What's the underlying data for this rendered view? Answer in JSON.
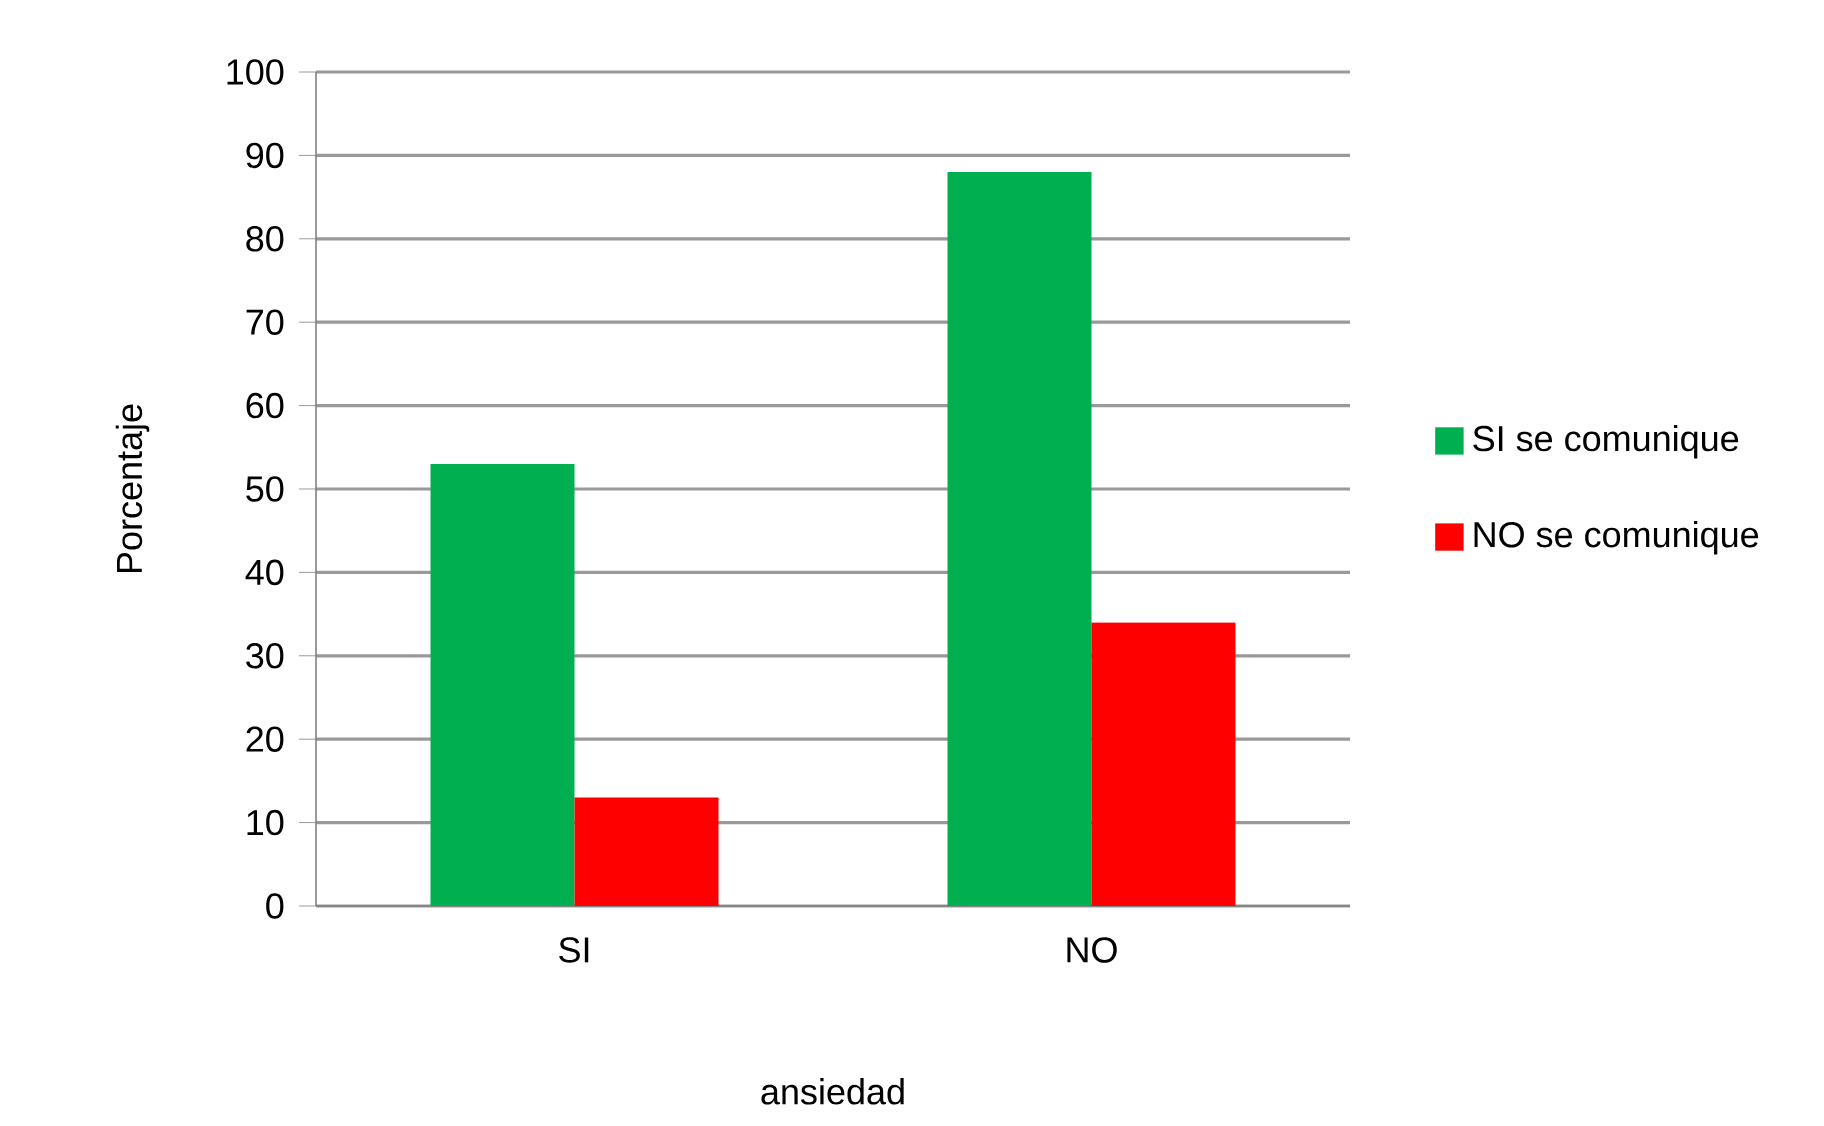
{
  "chart_data": {
    "type": "bar",
    "ylabel": "Porcentaje",
    "xlabel": "ansiedad",
    "categories": [
      "SI",
      "NO"
    ],
    "series": [
      {
        "name": "SI se comunique",
        "color": "#00b050",
        "values": [
          53,
          88
        ]
      },
      {
        "name": "NO se comunique",
        "color": "#ff0000",
        "values": [
          13,
          34
        ]
      }
    ],
    "ylim": [
      0,
      100
    ],
    "yticks": [
      0,
      10,
      20,
      30,
      40,
      50,
      60,
      70,
      80,
      90,
      100
    ],
    "grid": "y",
    "legend": "right"
  }
}
